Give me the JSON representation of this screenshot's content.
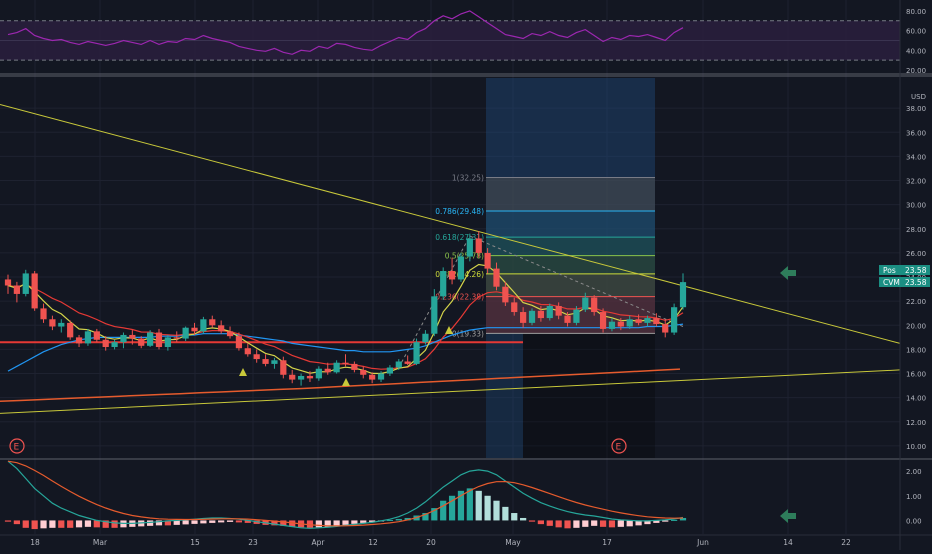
{
  "colors": {
    "background": "#131722",
    "grid": "#1e2230",
    "up": "#26a69a",
    "down": "#ef5350",
    "rsi": "#9c27b0",
    "trendline": "#c8c83a",
    "sma_blue": "#2196f3",
    "sma_yellow": "#d4d44a",
    "sma_red": "#e53935",
    "arrow": "#2e7d5b"
  },
  "price_axis": {
    "currency": "USD",
    "ticks": [
      "38.00",
      "36.00",
      "34.00",
      "32.00",
      "30.00",
      "28.00",
      "26.00",
      "24.00",
      "22.00",
      "20.00",
      "18.00",
      "16.00",
      "14.00",
      "12.00",
      "10.00"
    ],
    "min": 9,
    "max": 40.5
  },
  "rsi_axis": {
    "ticks": [
      "80.00",
      "60.00",
      "40.00",
      "20.00"
    ],
    "min": 18,
    "max": 86
  },
  "macd_axis": {
    "ticks": [
      "2.00",
      "1.00",
      "0.00"
    ],
    "min": -0.55,
    "max": 2.45
  },
  "x_axis": {
    "ticks": [
      "18",
      "Mar",
      "15",
      "23",
      "Apr",
      "12",
      "20",
      "May",
      "17",
      "Jun",
      "14",
      "22"
    ]
  },
  "labels": {
    "pos_label": "Pos",
    "pos_value": "23.58",
    "cvm_label": "CVM",
    "cvm_value": "23.58",
    "earnings_marker": "E"
  },
  "fib_levels": [
    {
      "label": "1(32.25)",
      "value": 32.25
    },
    {
      "label": "0.786(29.48)",
      "value": 29.48
    },
    {
      "label": "0.618(27.31)",
      "value": 27.31
    },
    {
      "label": "0.5(25.78)",
      "value": 25.78
    },
    {
      "label": "0.382(24.26)",
      "value": 24.26
    },
    {
      "label": "0.236(22.38)",
      "value": 22.38
    },
    {
      "label": "0(19.33)",
      "value": 19.33
    }
  ],
  "chart_data": {
    "type": "candlestick",
    "x_unit": "trading days (index)",
    "candles": [
      [
        23.8,
        24.2,
        22.6,
        23.3
      ],
      [
        23.3,
        23.6,
        21.9,
        22.6
      ],
      [
        22.6,
        24.6,
        22.4,
        24.3
      ],
      [
        24.3,
        24.5,
        21.2,
        21.4
      ],
      [
        21.4,
        21.8,
        20.2,
        20.5
      ],
      [
        20.5,
        20.8,
        19.6,
        19.9
      ],
      [
        19.9,
        20.5,
        19.4,
        20.2
      ],
      [
        20.2,
        20.4,
        18.8,
        19.0
      ],
      [
        19.0,
        19.2,
        18.2,
        18.5
      ],
      [
        18.5,
        19.7,
        18.3,
        19.5
      ],
      [
        19.5,
        19.7,
        18.6,
        18.8
      ],
      [
        18.8,
        19.1,
        17.9,
        18.2
      ],
      [
        18.2,
        18.8,
        18.0,
        18.6
      ],
      [
        18.6,
        19.4,
        18.1,
        19.2
      ],
      [
        19.2,
        19.6,
        18.4,
        18.9
      ],
      [
        18.9,
        19.1,
        18.1,
        18.3
      ],
      [
        18.3,
        19.6,
        18.2,
        19.4
      ],
      [
        19.4,
        19.7,
        18.0,
        18.2
      ],
      [
        18.2,
        19.2,
        17.9,
        19.0
      ],
      [
        19.0,
        19.5,
        18.6,
        18.9
      ],
      [
        18.9,
        19.9,
        18.7,
        19.8
      ],
      [
        19.8,
        20.2,
        19.2,
        19.5
      ],
      [
        19.5,
        20.7,
        19.3,
        20.5
      ],
      [
        20.5,
        20.8,
        19.8,
        20.0
      ],
      [
        20.0,
        20.4,
        19.3,
        19.5
      ],
      [
        19.5,
        19.9,
        18.9,
        19.1
      ],
      [
        19.1,
        19.4,
        17.9,
        18.1
      ],
      [
        18.1,
        18.5,
        17.4,
        17.6
      ],
      [
        17.6,
        18.0,
        16.9,
        17.2
      ],
      [
        17.2,
        17.6,
        16.6,
        16.8
      ],
      [
        16.8,
        17.3,
        16.4,
        17.1
      ],
      [
        17.1,
        17.4,
        15.6,
        15.9
      ],
      [
        15.9,
        16.3,
        15.2,
        15.5
      ],
      [
        15.5,
        16.0,
        15.0,
        15.8
      ],
      [
        15.8,
        16.2,
        15.3,
        15.6
      ],
      [
        15.6,
        16.6,
        15.4,
        16.4
      ],
      [
        16.4,
        16.9,
        15.9,
        16.1
      ],
      [
        16.1,
        17.1,
        16.0,
        16.9
      ],
      [
        16.9,
        17.6,
        16.6,
        16.8
      ],
      [
        16.8,
        17.0,
        16.1,
        16.3
      ],
      [
        16.3,
        16.6,
        15.6,
        15.9
      ],
      [
        15.9,
        16.1,
        15.2,
        15.5
      ],
      [
        15.5,
        16.2,
        15.3,
        16.0
      ],
      [
        16.0,
        16.7,
        15.8,
        16.5
      ],
      [
        16.5,
        17.2,
        16.3,
        17.0
      ],
      [
        17.0,
        17.5,
        16.7,
        16.8
      ],
      [
        16.8,
        18.9,
        16.7,
        18.6
      ],
      [
        18.6,
        19.6,
        18.4,
        19.3
      ],
      [
        19.3,
        23.0,
        19.1,
        22.4
      ],
      [
        22.4,
        24.8,
        22.1,
        24.5
      ],
      [
        24.5,
        25.6,
        23.4,
        23.8
      ],
      [
        23.8,
        26.0,
        23.6,
        25.7
      ],
      [
        25.7,
        27.6,
        25.3,
        27.2
      ],
      [
        27.2,
        27.8,
        25.6,
        26.0
      ],
      [
        26.0,
        26.4,
        24.3,
        24.7
      ],
      [
        24.7,
        25.2,
        22.9,
        23.2
      ],
      [
        23.2,
        23.6,
        21.6,
        21.9
      ],
      [
        21.9,
        22.3,
        20.8,
        21.1
      ],
      [
        21.1,
        21.5,
        19.8,
        20.2
      ],
      [
        20.2,
        21.4,
        20.0,
        21.2
      ],
      [
        21.2,
        21.6,
        20.3,
        20.6
      ],
      [
        20.6,
        21.8,
        20.4,
        21.6
      ],
      [
        21.6,
        21.9,
        20.5,
        20.8
      ],
      [
        20.8,
        21.1,
        19.9,
        20.2
      ],
      [
        20.2,
        21.6,
        20.0,
        21.3
      ],
      [
        21.3,
        22.7,
        21.1,
        22.3
      ],
      [
        22.3,
        22.5,
        20.8,
        21.1
      ],
      [
        21.1,
        21.4,
        19.4,
        19.7
      ],
      [
        19.7,
        20.6,
        19.5,
        20.3
      ],
      [
        20.3,
        20.6,
        19.6,
        19.9
      ],
      [
        19.9,
        20.8,
        19.7,
        20.5
      ],
      [
        20.5,
        20.9,
        20.0,
        20.2
      ],
      [
        20.2,
        20.8,
        19.9,
        20.6
      ],
      [
        20.6,
        21.0,
        19.9,
        20.1
      ],
      [
        20.1,
        20.5,
        19.0,
        19.4
      ],
      [
        19.4,
        21.8,
        19.2,
        21.5
      ],
      [
        21.5,
        24.3,
        21.3,
        23.58
      ]
    ]
  }
}
